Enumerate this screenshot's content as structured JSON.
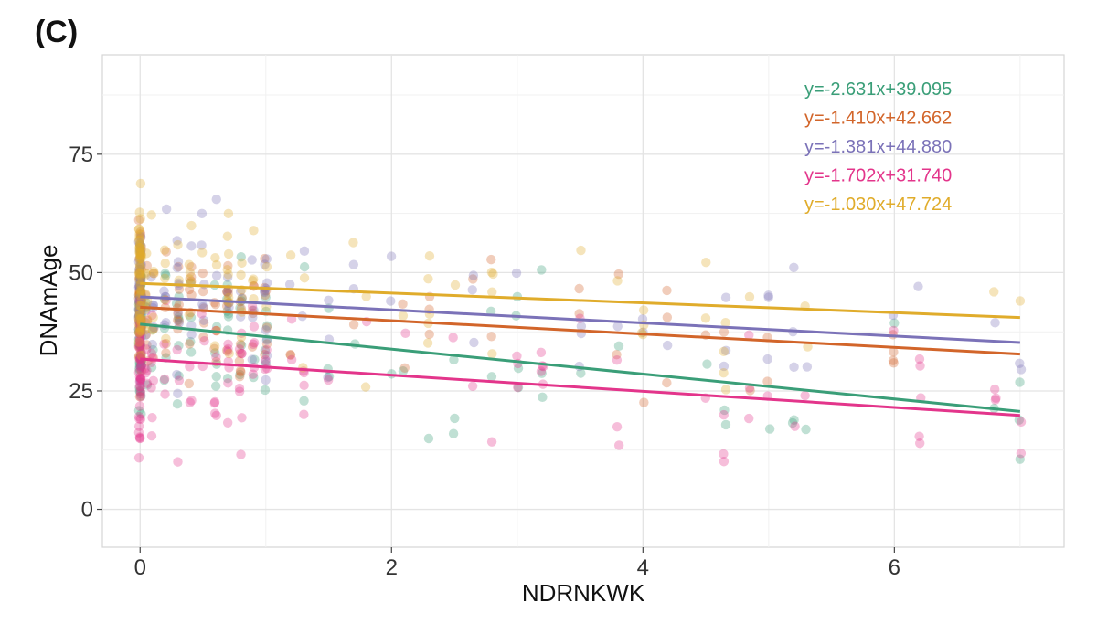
{
  "panel_label": "(C)",
  "chart_data": {
    "type": "scatter",
    "title": "",
    "xlabel": "NDRNKWK",
    "ylabel": "DNAmAge",
    "xlim": [
      -0.3,
      7.35
    ],
    "ylim": [
      -8,
      96
    ],
    "x_ticks": [
      0,
      2,
      4,
      6
    ],
    "y_ticks": [
      0,
      25,
      50,
      75
    ],
    "grid": true,
    "legend": "top-right",
    "series": [
      {
        "color": "#3a9e78",
        "slope": -2.631,
        "intercept": 39.095,
        "equation": "y=-2.631x+39.095",
        "x_range": [
          0,
          7
        ]
      },
      {
        "color": "#d2652a",
        "slope": -1.41,
        "intercept": 42.662,
        "equation": "y=-1.410x+42.662",
        "x_range": [
          0,
          7
        ]
      },
      {
        "color": "#7b72b8",
        "slope": -1.381,
        "intercept": 44.88,
        "equation": "y=-1.381x+44.880",
        "x_range": [
          0,
          7
        ]
      },
      {
        "color": "#e3358b",
        "slope": -1.702,
        "intercept": 31.74,
        "equation": "y=-1.702x+31.740",
        "x_range": [
          0,
          7
        ]
      },
      {
        "color": "#e0ac2b",
        "slope": -1.03,
        "intercept": 47.724,
        "equation": "y=-1.030x+47.724",
        "x_range": [
          0,
          7
        ]
      }
    ]
  }
}
